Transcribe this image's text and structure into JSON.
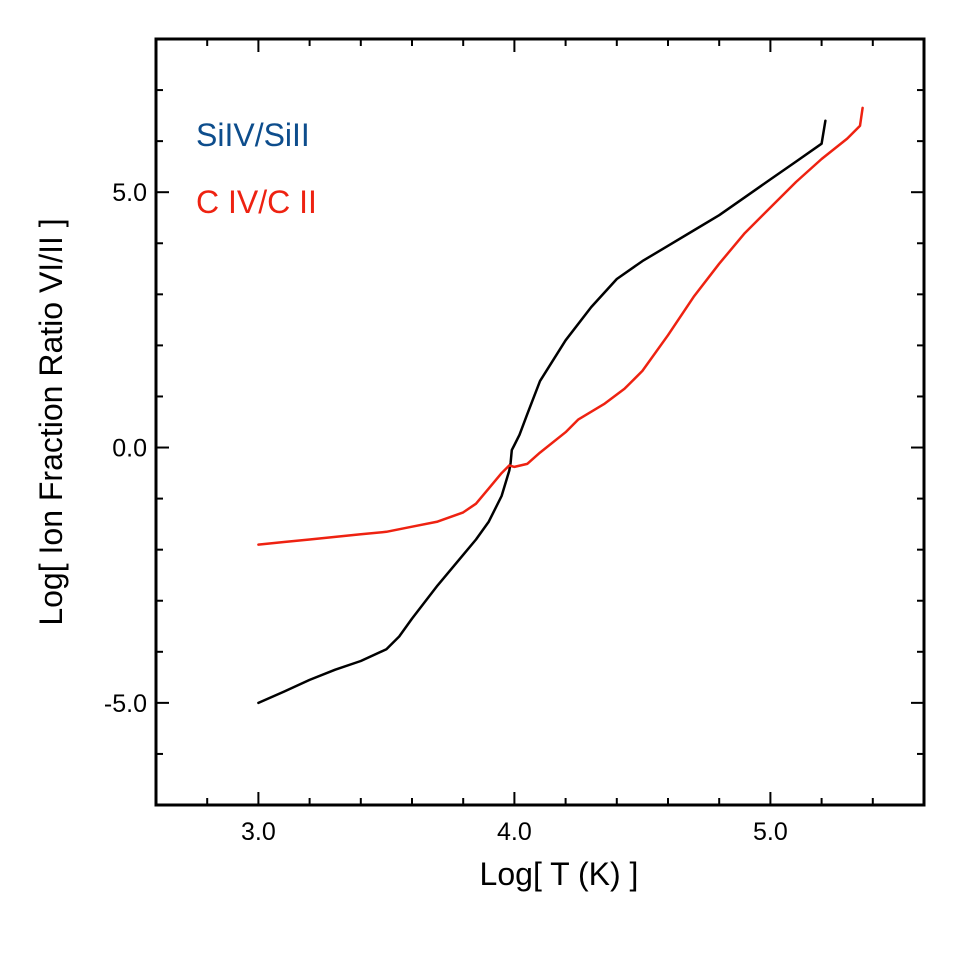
{
  "chart_data": {
    "type": "line",
    "xlabel": "Log[ T (K) ]",
    "ylabel": "Log[ Ion Fraction Ratio VI/II ]",
    "xlim": [
      2.6,
      5.6
    ],
    "ylim": [
      -7.0,
      8.0
    ],
    "x_ticks": [
      {
        "value": 3.0,
        "label": "3.0"
      },
      {
        "value": 4.0,
        "label": "4.0"
      },
      {
        "value": 5.0,
        "label": "5.0"
      }
    ],
    "x_minor_ticks": [
      2.8,
      3.2,
      3.4,
      3.6,
      3.8,
      4.2,
      4.4,
      4.6,
      4.8,
      5.2,
      5.4
    ],
    "y_ticks": [
      {
        "value": -5.0,
        "label": "-5.0"
      },
      {
        "value": 0.0,
        "label": "0.0"
      },
      {
        "value": 5.0,
        "label": "5.0"
      }
    ],
    "y_minor_ticks": [
      -6.0,
      -4.0,
      -3.0,
      -2.0,
      -1.0,
      1.0,
      2.0,
      3.0,
      4.0,
      6.0,
      7.0
    ],
    "grid": false,
    "legend_position": "top-left",
    "series": [
      {
        "name": "SiIV/SiII",
        "legend_label": "SiIV/SiII",
        "color": "#000000",
        "legend_color": "#0d4d8c",
        "points": [
          [
            3.0,
            -5.0
          ],
          [
            3.1,
            -4.78
          ],
          [
            3.2,
            -4.55
          ],
          [
            3.3,
            -4.35
          ],
          [
            3.4,
            -4.18
          ],
          [
            3.5,
            -3.95
          ],
          [
            3.55,
            -3.7
          ],
          [
            3.6,
            -3.35
          ],
          [
            3.7,
            -2.7
          ],
          [
            3.8,
            -2.1
          ],
          [
            3.85,
            -1.8
          ],
          [
            3.9,
            -1.45
          ],
          [
            3.95,
            -0.95
          ],
          [
            3.98,
            -0.45
          ],
          [
            3.985,
            -0.3
          ],
          [
            3.99,
            -0.05
          ],
          [
            4.0,
            0.05
          ],
          [
            4.02,
            0.25
          ],
          [
            4.05,
            0.65
          ],
          [
            4.1,
            1.3
          ],
          [
            4.2,
            2.1
          ],
          [
            4.3,
            2.75
          ],
          [
            4.4,
            3.3
          ],
          [
            4.5,
            3.65
          ],
          [
            4.6,
            3.95
          ],
          [
            4.7,
            4.25
          ],
          [
            4.8,
            4.55
          ],
          [
            4.9,
            4.9
          ],
          [
            5.0,
            5.25
          ],
          [
            5.1,
            5.6
          ],
          [
            5.2,
            5.95
          ],
          [
            5.215,
            6.4
          ]
        ]
      },
      {
        "name": "C IV/C II",
        "legend_label": "C IV/C II",
        "color": "#ee2211",
        "legend_color": "#ee2211",
        "points": [
          [
            3.0,
            -1.9
          ],
          [
            3.1,
            -1.85
          ],
          [
            3.2,
            -1.8
          ],
          [
            3.3,
            -1.75
          ],
          [
            3.4,
            -1.7
          ],
          [
            3.5,
            -1.65
          ],
          [
            3.6,
            -1.55
          ],
          [
            3.7,
            -1.45
          ],
          [
            3.8,
            -1.27
          ],
          [
            3.85,
            -1.1
          ],
          [
            3.9,
            -0.8
          ],
          [
            3.95,
            -0.5
          ],
          [
            3.98,
            -0.35
          ],
          [
            4.0,
            -0.38
          ],
          [
            4.05,
            -0.32
          ],
          [
            4.1,
            -0.1
          ],
          [
            4.2,
            0.3
          ],
          [
            4.25,
            0.55
          ],
          [
            4.35,
            0.85
          ],
          [
            4.43,
            1.15
          ],
          [
            4.5,
            1.5
          ],
          [
            4.6,
            2.2
          ],
          [
            4.7,
            2.95
          ],
          [
            4.8,
            3.6
          ],
          [
            4.9,
            4.2
          ],
          [
            5.0,
            4.7
          ],
          [
            5.1,
            5.2
          ],
          [
            5.2,
            5.65
          ],
          [
            5.3,
            6.05
          ],
          [
            5.35,
            6.3
          ],
          [
            5.36,
            6.65
          ]
        ]
      }
    ]
  }
}
